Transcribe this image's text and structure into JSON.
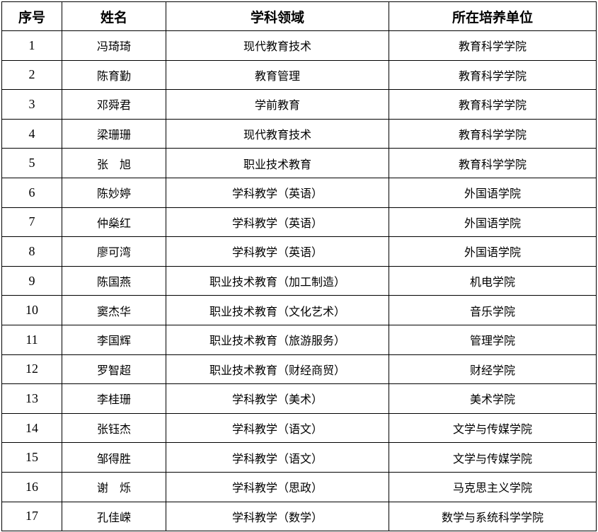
{
  "table": {
    "headers": [
      "序号",
      "姓名",
      "学科领域",
      "所在培养单位"
    ],
    "rows": [
      [
        "1",
        "冯琦琦",
        "现代教育技术",
        "教育科学学院"
      ],
      [
        "2",
        "陈育勤",
        "教育管理",
        "教育科学学院"
      ],
      [
        "3",
        "邓舜君",
        "学前教育",
        "教育科学学院"
      ],
      [
        "4",
        "梁珊珊",
        "现代教育技术",
        "教育科学学院"
      ],
      [
        "5",
        "张　旭",
        "职业技术教育",
        "教育科学学院"
      ],
      [
        "6",
        "陈妙婷",
        "学科教学（英语）",
        "外国语学院"
      ],
      [
        "7",
        "仲燊红",
        "学科教学（英语）",
        "外国语学院"
      ],
      [
        "8",
        "廖可湾",
        "学科教学（英语）",
        "外国语学院"
      ],
      [
        "9",
        "陈国燕",
        "职业技术教育（加工制造）",
        "机电学院"
      ],
      [
        "10",
        "窦杰华",
        "职业技术教育（文化艺术）",
        "音乐学院"
      ],
      [
        "11",
        "李国辉",
        "职业技术教育（旅游服务）",
        "管理学院"
      ],
      [
        "12",
        "罗智超",
        "职业技术教育（财经商贸）",
        "财经学院"
      ],
      [
        "13",
        "李桂珊",
        "学科教学（美术）",
        "美术学院"
      ],
      [
        "14",
        "张钰杰",
        "学科教学（语文）",
        "文学与传媒学院"
      ],
      [
        "15",
        "邹得胜",
        "学科教学（语文）",
        "文学与传媒学院"
      ],
      [
        "16",
        "谢　烁",
        "学科教学（思政）",
        "马克思主义学院"
      ],
      [
        "17",
        "孔佳嵘",
        "学科教学（数学）",
        "数学与系统科学学院"
      ]
    ]
  }
}
